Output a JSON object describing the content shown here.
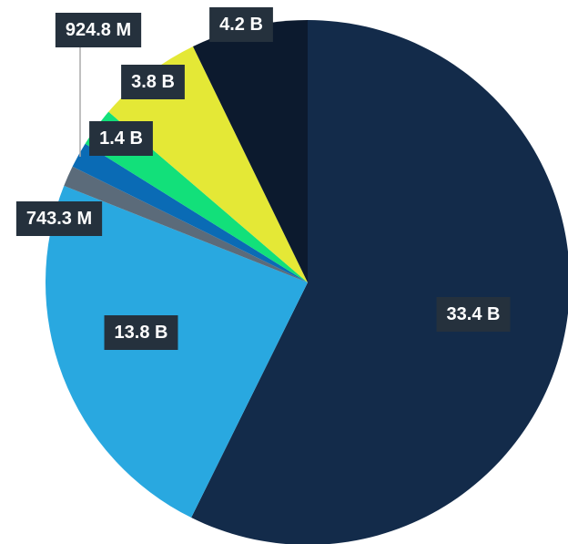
{
  "chart_data": {
    "type": "pie",
    "categories": [
      null,
      null,
      null,
      null,
      null,
      null,
      null
    ],
    "values": [
      33400000000,
      13800000000,
      743300000,
      924800000,
      1400000000,
      3800000000,
      4200000000
    ],
    "value_labels": [
      "33.4 B",
      "13.8 B",
      "743.3 M",
      "924.8 M",
      "1.4 B",
      "3.8 B",
      "4.2 B"
    ],
    "colors": [
      "#132b4a",
      "#29a8e0",
      "#5b6b7a",
      "#0a6bb5",
      "#12e07a",
      "#e4e836",
      "#0c1a2e"
    ]
  }
}
